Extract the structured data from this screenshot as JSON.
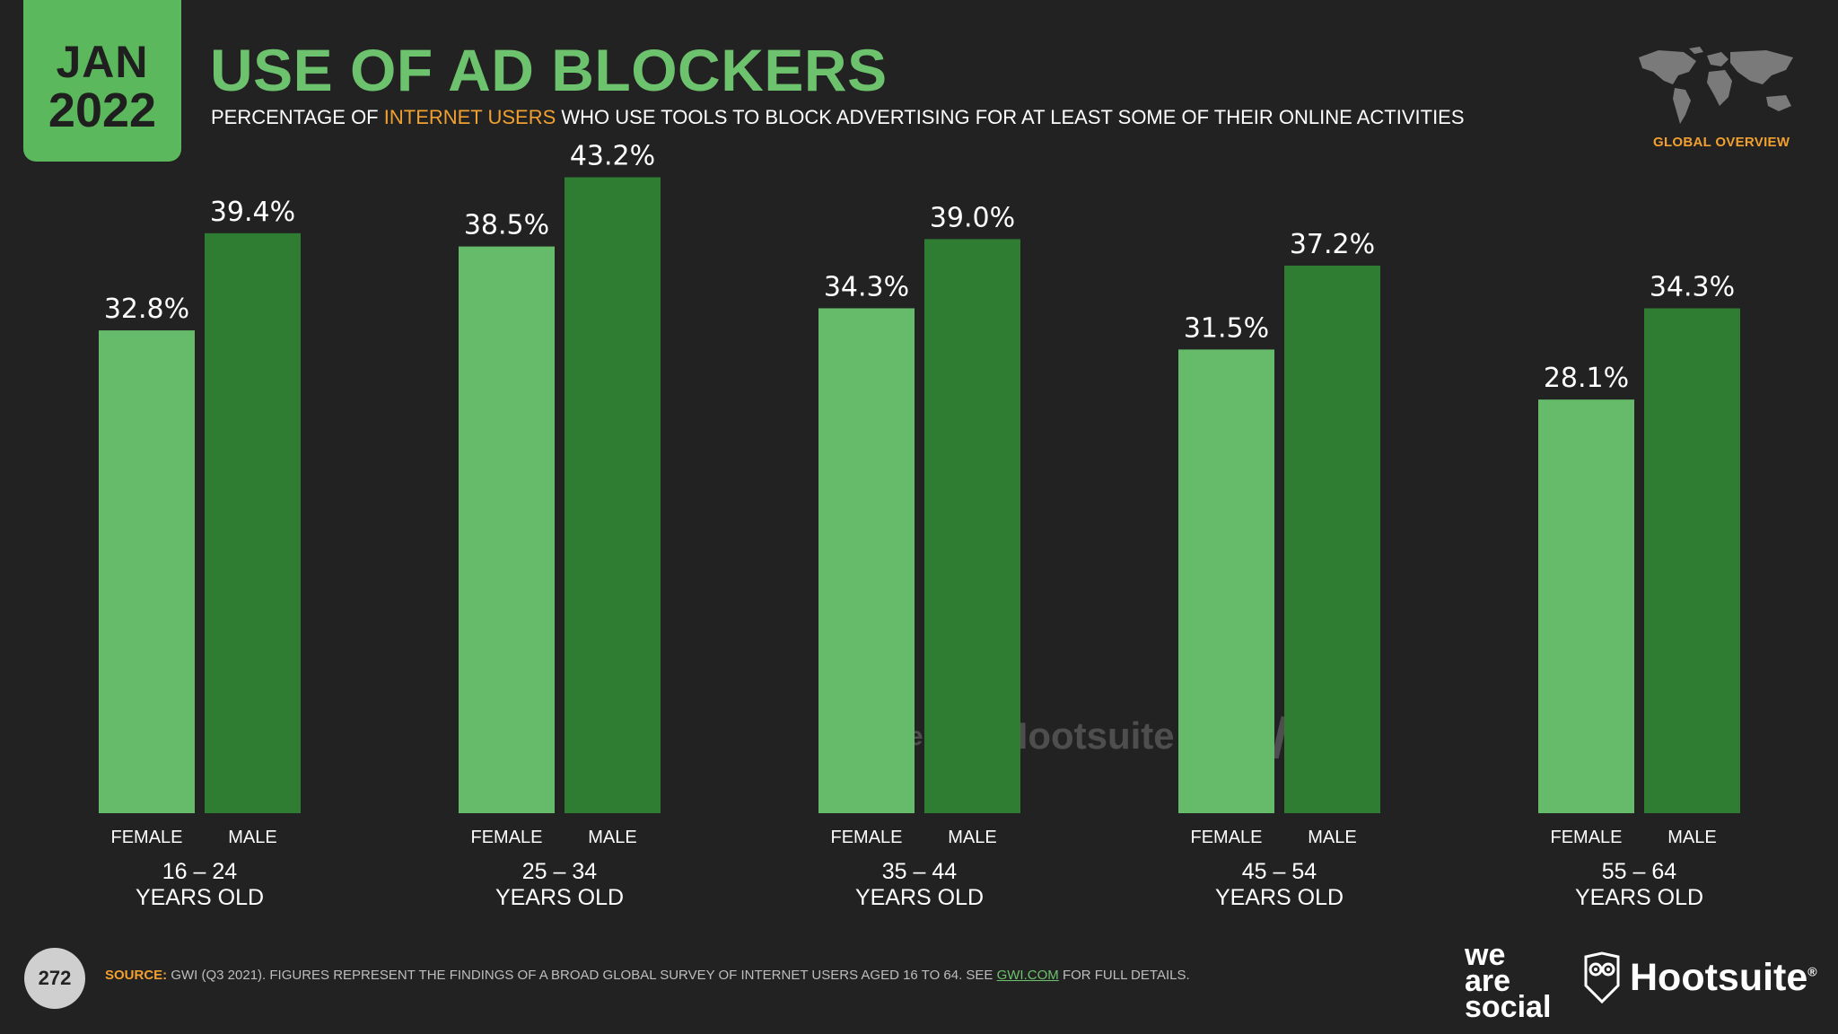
{
  "header": {
    "badge_month": "JAN",
    "badge_year": "2022",
    "title": "USE OF AD BLOCKERS",
    "subtitle_pre": "PERCENTAGE OF",
    "subtitle_highlight": "INTERNET USERS",
    "subtitle_post": "WHO USE TOOLS TO BLOCK ADVERTISING FOR AT LEAST SOME OF THEIR ONLINE ACTIVITIES",
    "corner_label": "GLOBAL OVERVIEW"
  },
  "watermarks": {
    "wearesocial": "we are social",
    "hootsuite": "Hootsuite",
    "gwi": "GWI."
  },
  "footer": {
    "page_number": "272",
    "source_label": "SOURCE:",
    "source_text": "GWI (Q3 2021). FIGURES REPRESENT THE FINDINGS OF A BROAD GLOBAL SURVEY OF INTERNET USERS AGED 16 TO 64. SEE",
    "source_link": "GWI.COM",
    "source_tail": "FOR FULL DETAILS.",
    "logo_we": "we",
    "logo_are": "are",
    "logo_social": "social",
    "logo_hootsuite": "Hootsuite",
    "logo_reg": "®"
  },
  "colors": {
    "background": "#222222",
    "female": "#66bb6a",
    "male": "#2e7d32",
    "accent": "#f0a030",
    "title": "#6dc26d"
  },
  "chart_data": {
    "type": "bar",
    "title": "USE OF AD BLOCKERS",
    "ylim": [
      0,
      50
    ],
    "series": [
      {
        "name": "FEMALE",
        "values": [
          32.8,
          38.5,
          34.3,
          31.5,
          28.1
        ]
      },
      {
        "name": "MALE",
        "values": [
          39.4,
          43.2,
          39.0,
          37.2,
          34.3
        ]
      }
    ],
    "groups": [
      {
        "line1": "16 – 24",
        "line2": "YEARS OLD"
      },
      {
        "line1": "25 – 34",
        "line2": "YEARS OLD"
      },
      {
        "line1": "35 – 44",
        "line2": "YEARS OLD"
      },
      {
        "line1": "45 – 54",
        "line2": "YEARS OLD"
      },
      {
        "line1": "55 – 64",
        "line2": "YEARS OLD"
      }
    ],
    "labels": {
      "female": [
        "32.8%",
        "38.5%",
        "34.3%",
        "31.5%",
        "28.1%"
      ],
      "male": [
        "39.4%",
        "43.2%",
        "39.0%",
        "37.2%",
        "34.3%"
      ]
    },
    "category_female": "FEMALE",
    "category_male": "MALE"
  }
}
